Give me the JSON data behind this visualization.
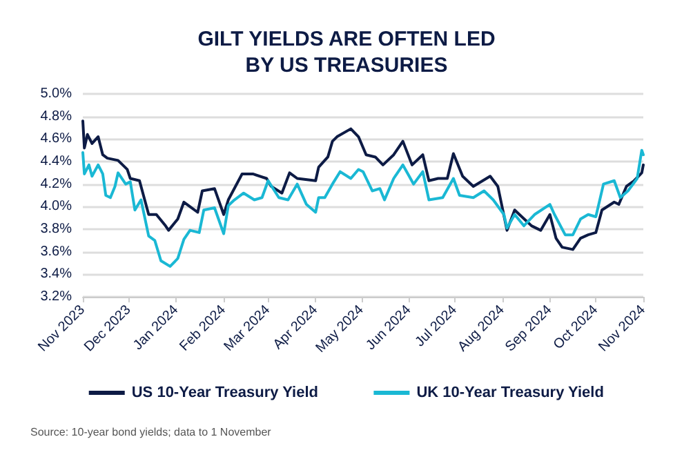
{
  "chart_data": {
    "type": "line",
    "title": "GILT YIELDS ARE OFTEN LED\nBY US TREASURIES",
    "xlim": [
      "2023-11-01",
      "2024-11-01"
    ],
    "xticks": [
      {
        "value": "2023-11-01",
        "label": "Nov 2023"
      },
      {
        "value": "2023-12-01",
        "label": "Dec 2023"
      },
      {
        "value": "2024-01-01",
        "label": "Jan 2024"
      },
      {
        "value": "2024-02-01",
        "label": "Feb 2024"
      },
      {
        "value": "2024-03-01",
        "label": "Mar 2024"
      },
      {
        "value": "2024-04-01",
        "label": "Apr 2024"
      },
      {
        "value": "2024-05-01",
        "label": "May 2024"
      },
      {
        "value": "2024-06-01",
        "label": "Jun 2024"
      },
      {
        "value": "2024-07-01",
        "label": "Jul 2024"
      },
      {
        "value": "2024-08-01",
        "label": "Aug 2024"
      },
      {
        "value": "2024-09-01",
        "label": "Sep 2024"
      },
      {
        "value": "2024-10-01",
        "label": "Oct 2024"
      },
      {
        "value": "2024-11-01",
        "label": "Nov 2024"
      }
    ],
    "ylim": [
      3.2,
      5.0
    ],
    "yticks": [
      {
        "value": 3.2,
        "label": "3.2%"
      },
      {
        "value": 3.4,
        "label": "3.4%"
      },
      {
        "value": 3.6,
        "label": "3.6%"
      },
      {
        "value": 3.8,
        "label": "3.8%"
      },
      {
        "value": 4.0,
        "label": "4.0%"
      },
      {
        "value": 4.2,
        "label": "4.2%"
      },
      {
        "value": 4.4,
        "label": "4.4%"
      },
      {
        "value": 4.6,
        "label": "4.6%"
      },
      {
        "value": 4.8,
        "label": "4.8%"
      },
      {
        "value": 5.0,
        "label": "5.0%"
      }
    ],
    "grid": "y",
    "legend": "bottom",
    "marker": "none",
    "line_style": "solid",
    "annotations": [
      "Source: 10-year bond yields; data to 1 November"
    ],
    "series": [
      {
        "name": "US 10-Year Treasury Yield",
        "color": "#0d1b45",
        "x": [
          "2023-11-01",
          "2023-11-02",
          "2023-11-04",
          "2023-11-07",
          "2023-11-11",
          "2023-11-14",
          "2023-11-17",
          "2023-11-24",
          "2023-11-30",
          "2023-12-02",
          "2023-12-08",
          "2023-12-14",
          "2023-12-19",
          "2023-12-25",
          "2023-12-27",
          "2024-01-02",
          "2024-01-06",
          "2024-01-10",
          "2024-01-15",
          "2024-01-18",
          "2024-01-26",
          "2024-02-01",
          "2024-02-04",
          "2024-02-13",
          "2024-02-20",
          "2024-02-29",
          "2024-03-03",
          "2024-03-10",
          "2024-03-15",
          "2024-03-20",
          "2024-04-01",
          "2024-04-03",
          "2024-04-09",
          "2024-04-12",
          "2024-04-15",
          "2024-04-24",
          "2024-04-29",
          "2024-05-04",
          "2024-05-10",
          "2024-05-15",
          "2024-05-22",
          "2024-05-28",
          "2024-06-03",
          "2024-06-10",
          "2024-06-14",
          "2024-06-20",
          "2024-06-26",
          "2024-06-30",
          "2024-07-06",
          "2024-07-13",
          "2024-07-24",
          "2024-07-29",
          "2024-08-04",
          "2024-08-09",
          "2024-08-20",
          "2024-08-26",
          "2024-09-01",
          "2024-09-05",
          "2024-09-09",
          "2024-09-16",
          "2024-09-21",
          "2024-09-26",
          "2024-10-01",
          "2024-10-05",
          "2024-10-13",
          "2024-10-16",
          "2024-10-21",
          "2024-10-26",
          "2024-10-31",
          "2024-11-01"
        ],
        "values": [
          4.76,
          4.52,
          4.64,
          4.56,
          4.62,
          4.46,
          4.43,
          4.41,
          4.33,
          4.25,
          4.23,
          3.93,
          3.93,
          3.83,
          3.79,
          3.89,
          4.04,
          4.0,
          3.95,
          4.14,
          4.16,
          3.93,
          4.06,
          4.29,
          4.29,
          4.25,
          4.18,
          4.12,
          4.3,
          4.25,
          4.23,
          4.35,
          4.44,
          4.58,
          4.62,
          4.69,
          4.62,
          4.46,
          4.44,
          4.37,
          4.46,
          4.58,
          4.37,
          4.46,
          4.23,
          4.25,
          4.25,
          4.47,
          4.27,
          4.18,
          4.27,
          4.18,
          3.79,
          3.97,
          3.83,
          3.79,
          3.93,
          3.72,
          3.64,
          3.62,
          3.72,
          3.75,
          3.77,
          3.97,
          4.04,
          4.02,
          4.18,
          4.23,
          4.3,
          4.37
        ]
      },
      {
        "name": "UK 10-Year Treasury Yield",
        "color": "#1ab8d4",
        "x": [
          "2023-11-01",
          "2023-11-02",
          "2023-11-05",
          "2023-11-07",
          "2023-11-11",
          "2023-11-14",
          "2023-11-16",
          "2023-11-19",
          "2023-11-22",
          "2023-11-24",
          "2023-11-29",
          "2023-12-02",
          "2023-12-05",
          "2023-12-09",
          "2023-12-14",
          "2023-12-18",
          "2023-12-22",
          "2023-12-28",
          "2024-01-02",
          "2024-01-06",
          "2024-01-10",
          "2024-01-16",
          "2024-01-19",
          "2024-01-26",
          "2024-02-01",
          "2024-02-04",
          "2024-02-08",
          "2024-02-14",
          "2024-02-21",
          "2024-02-26",
          "2024-03-01",
          "2024-03-08",
          "2024-03-14",
          "2024-03-20",
          "2024-03-26",
          "2024-04-01",
          "2024-04-03",
          "2024-04-07",
          "2024-04-12",
          "2024-04-17",
          "2024-04-24",
          "2024-04-29",
          "2024-05-02",
          "2024-05-08",
          "2024-05-13",
          "2024-05-16",
          "2024-05-22",
          "2024-05-28",
          "2024-06-04",
          "2024-06-10",
          "2024-06-14",
          "2024-06-23",
          "2024-06-30",
          "2024-07-04",
          "2024-07-13",
          "2024-07-20",
          "2024-07-26",
          "2024-08-02",
          "2024-08-04",
          "2024-08-09",
          "2024-08-15",
          "2024-08-22",
          "2024-09-01",
          "2024-09-04",
          "2024-09-11",
          "2024-09-16",
          "2024-09-21",
          "2024-09-26",
          "2024-10-01",
          "2024-10-06",
          "2024-10-13",
          "2024-10-17",
          "2024-10-22",
          "2024-10-28",
          "2024-10-31",
          "2024-11-01"
        ],
        "values": [
          4.48,
          4.29,
          4.37,
          4.27,
          4.37,
          4.29,
          4.1,
          4.08,
          4.18,
          4.3,
          4.2,
          4.22,
          3.97,
          4.06,
          3.74,
          3.7,
          3.52,
          3.47,
          3.54,
          3.71,
          3.79,
          3.77,
          3.97,
          3.99,
          3.76,
          4.01,
          4.06,
          4.12,
          4.06,
          4.08,
          4.23,
          4.08,
          4.06,
          4.2,
          4.02,
          3.95,
          4.08,
          4.08,
          4.2,
          4.31,
          4.25,
          4.33,
          4.31,
          4.14,
          4.16,
          4.06,
          4.25,
          4.37,
          4.2,
          4.31,
          4.06,
          4.08,
          4.25,
          4.1,
          4.08,
          4.14,
          4.06,
          3.93,
          3.81,
          3.93,
          3.83,
          3.93,
          4.02,
          3.93,
          3.75,
          3.75,
          3.89,
          3.93,
          3.91,
          4.2,
          4.23,
          4.08,
          4.14,
          4.25,
          4.5,
          4.46
        ]
      }
    ]
  }
}
